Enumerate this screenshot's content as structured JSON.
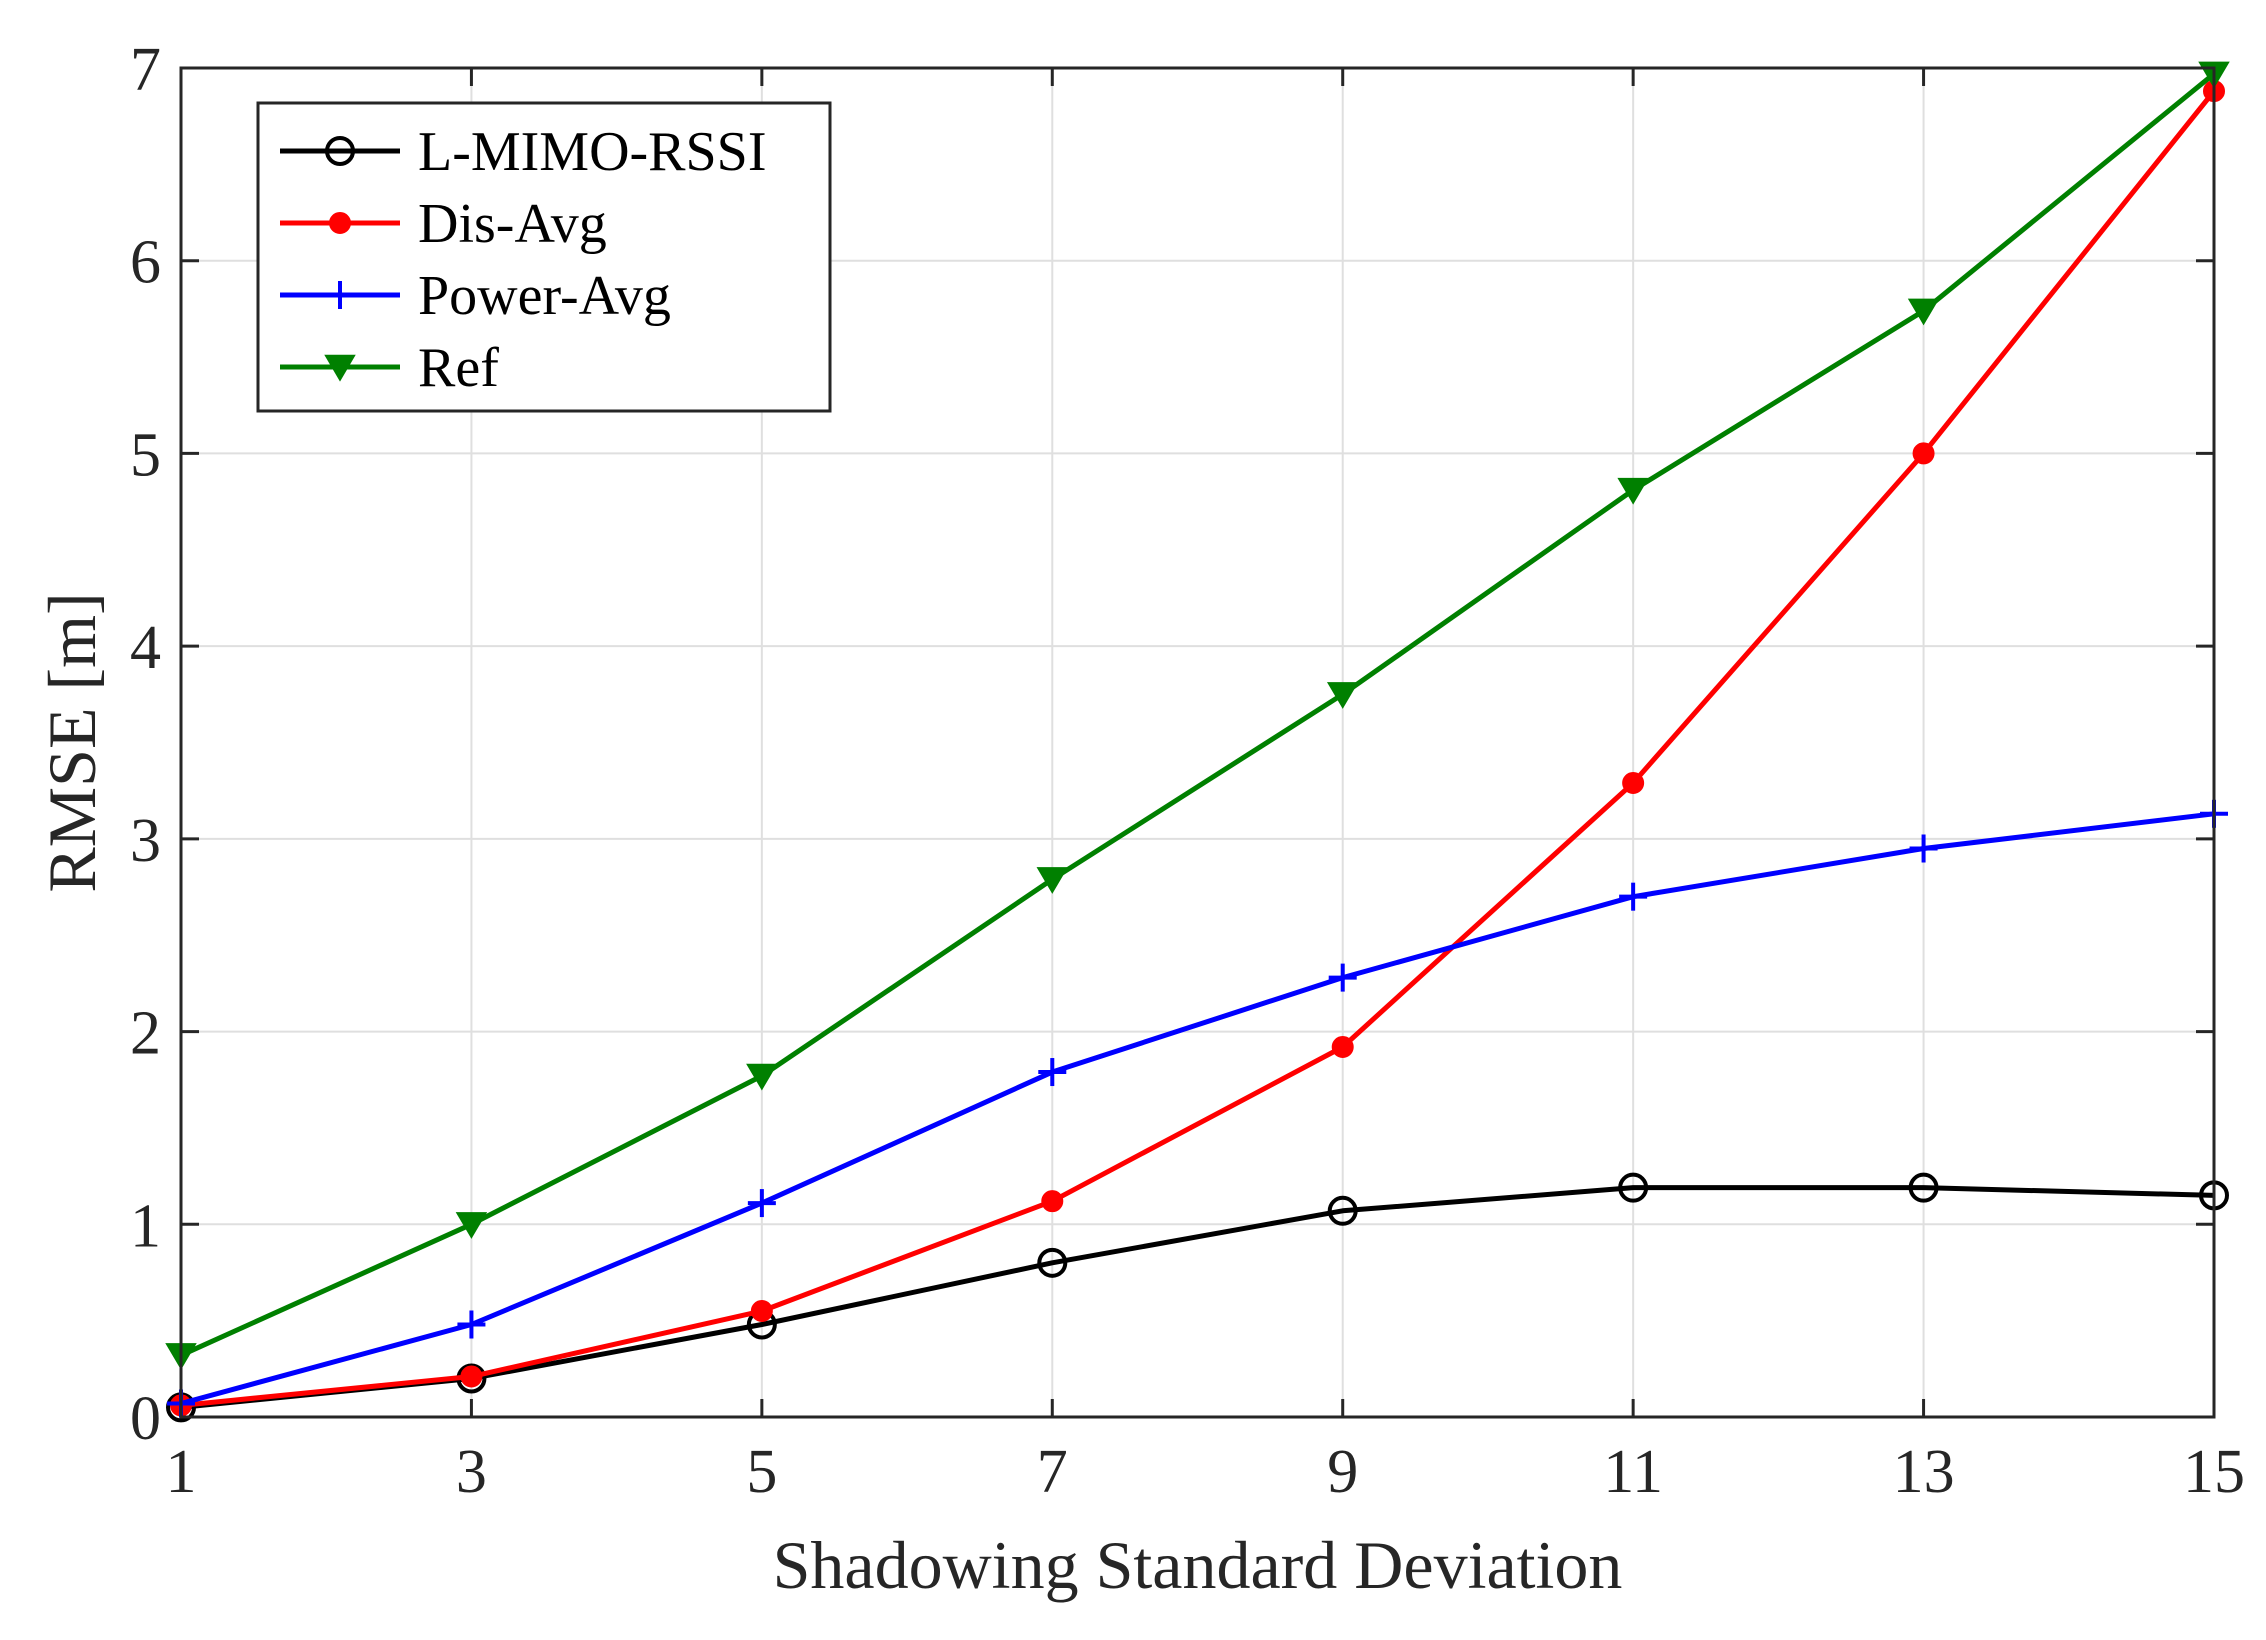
{
  "chart_data": {
    "type": "line",
    "title": "",
    "xlabel": "Shadowing Standard Deviation",
    "ylabel": "RMSE [m]",
    "x": [
      1,
      3,
      5,
      7,
      9,
      11,
      13,
      15
    ],
    "xlim": [
      1,
      15
    ],
    "ylim": [
      0,
      7
    ],
    "xticks": [
      1,
      3,
      5,
      7,
      9,
      11,
      13,
      15
    ],
    "yticks": [
      0,
      1,
      2,
      3,
      4,
      5,
      6,
      7
    ],
    "grid": true,
    "legend_position": "top-left",
    "series": [
      {
        "name": "L-MIMO-RSSI",
        "color": "#000000",
        "marker": "open-circle",
        "values": [
          0.05,
          0.2,
          0.48,
          0.8,
          1.07,
          1.19,
          1.19,
          1.15
        ]
      },
      {
        "name": "Dis-Avg",
        "color": "#ff0000",
        "marker": "filled-circle",
        "values": [
          0.06,
          0.21,
          0.55,
          1.12,
          1.92,
          3.29,
          5.0,
          6.88
        ]
      },
      {
        "name": "Power-Avg",
        "color": "#0000ff",
        "marker": "plus",
        "values": [
          0.07,
          0.48,
          1.11,
          1.79,
          2.28,
          2.7,
          2.95,
          3.13
        ]
      },
      {
        "name": "Ref",
        "color": "#008000",
        "marker": "down-triangle",
        "values": [
          0.32,
          1.0,
          1.77,
          2.79,
          3.75,
          4.81,
          5.74,
          6.97
        ]
      }
    ]
  }
}
